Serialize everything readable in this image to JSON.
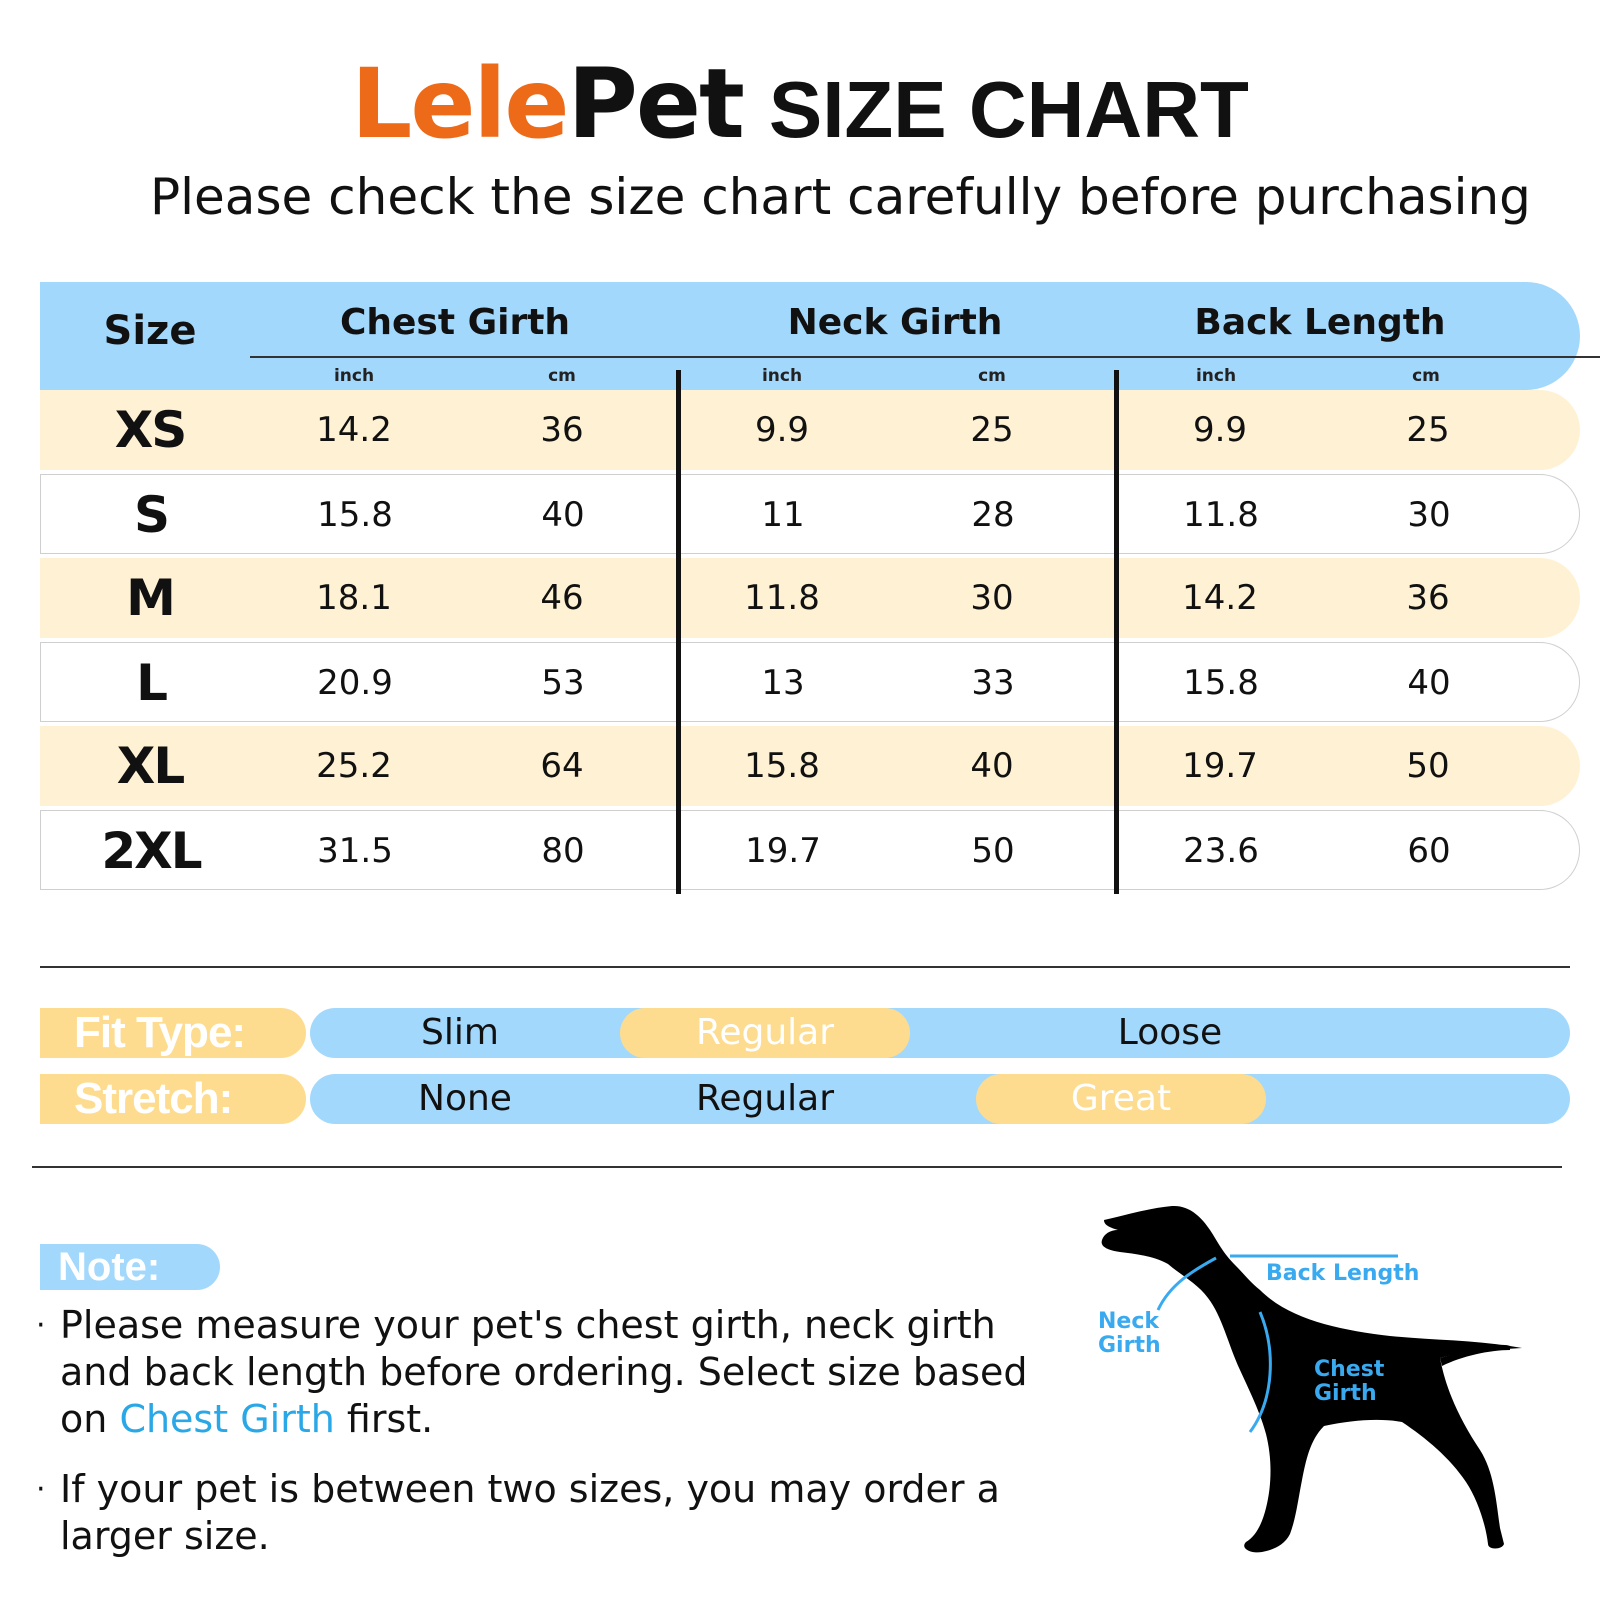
{
  "header": {
    "brand_left": "Lele",
    "brand_right": "Pet",
    "title": "SIZE CHART",
    "subtitle": "Please check the size chart carefully before purchasing"
  },
  "table": {
    "size_header": "Size",
    "groups": [
      {
        "title": "Chest Girth",
        "units": [
          "inch",
          "cm"
        ]
      },
      {
        "title": "Neck Girth",
        "units": [
          "inch",
          "cm"
        ]
      },
      {
        "title": "Back Length",
        "units": [
          "inch",
          "cm"
        ]
      }
    ],
    "rows": [
      {
        "size": "XS",
        "values": [
          "14.2",
          "36",
          "9.9",
          "25",
          "9.9",
          "25"
        ]
      },
      {
        "size": "S",
        "values": [
          "15.8",
          "40",
          "11",
          "28",
          "11.8",
          "30"
        ]
      },
      {
        "size": "M",
        "values": [
          "18.1",
          "46",
          "11.8",
          "30",
          "14.2",
          "36"
        ]
      },
      {
        "size": "L",
        "values": [
          "20.9",
          "53",
          "13",
          "33",
          "15.8",
          "40"
        ]
      },
      {
        "size": "XL",
        "values": [
          "25.2",
          "64",
          "15.8",
          "40",
          "19.7",
          "50"
        ]
      },
      {
        "size": "2XL",
        "values": [
          "31.5",
          "80",
          "19.7",
          "50",
          "23.6",
          "60"
        ]
      }
    ]
  },
  "fit_type": {
    "label": "Fit Type:",
    "options": [
      "Slim",
      "Regular",
      "Loose"
    ],
    "selected": "Regular"
  },
  "stretch": {
    "label": "Stretch:",
    "options": [
      "None",
      "Regular",
      "Great"
    ],
    "selected": "Great"
  },
  "note": {
    "badge": "Note:",
    "item1_before": "Please measure your pet's chest girth, neck girth and back length before ordering. Select size based on",
    "item1_highlight": "Chest Girth",
    "item1_after": "first.",
    "item2": "If your pet is between two sizes, you may order a larger size."
  },
  "diagram": {
    "back_length": "Back Length",
    "neck_line1": "Neck",
    "neck_line2": "Girth",
    "chest_line1": "Chest",
    "chest_line2": "Girth"
  },
  "colors": {
    "brand_orange": "#ec6a18",
    "header_blue": "#a3d8fd",
    "row_cream": "#fff1d3",
    "highlight_yellow": "#fedc8f",
    "label_blue": "#3aaaf0"
  }
}
